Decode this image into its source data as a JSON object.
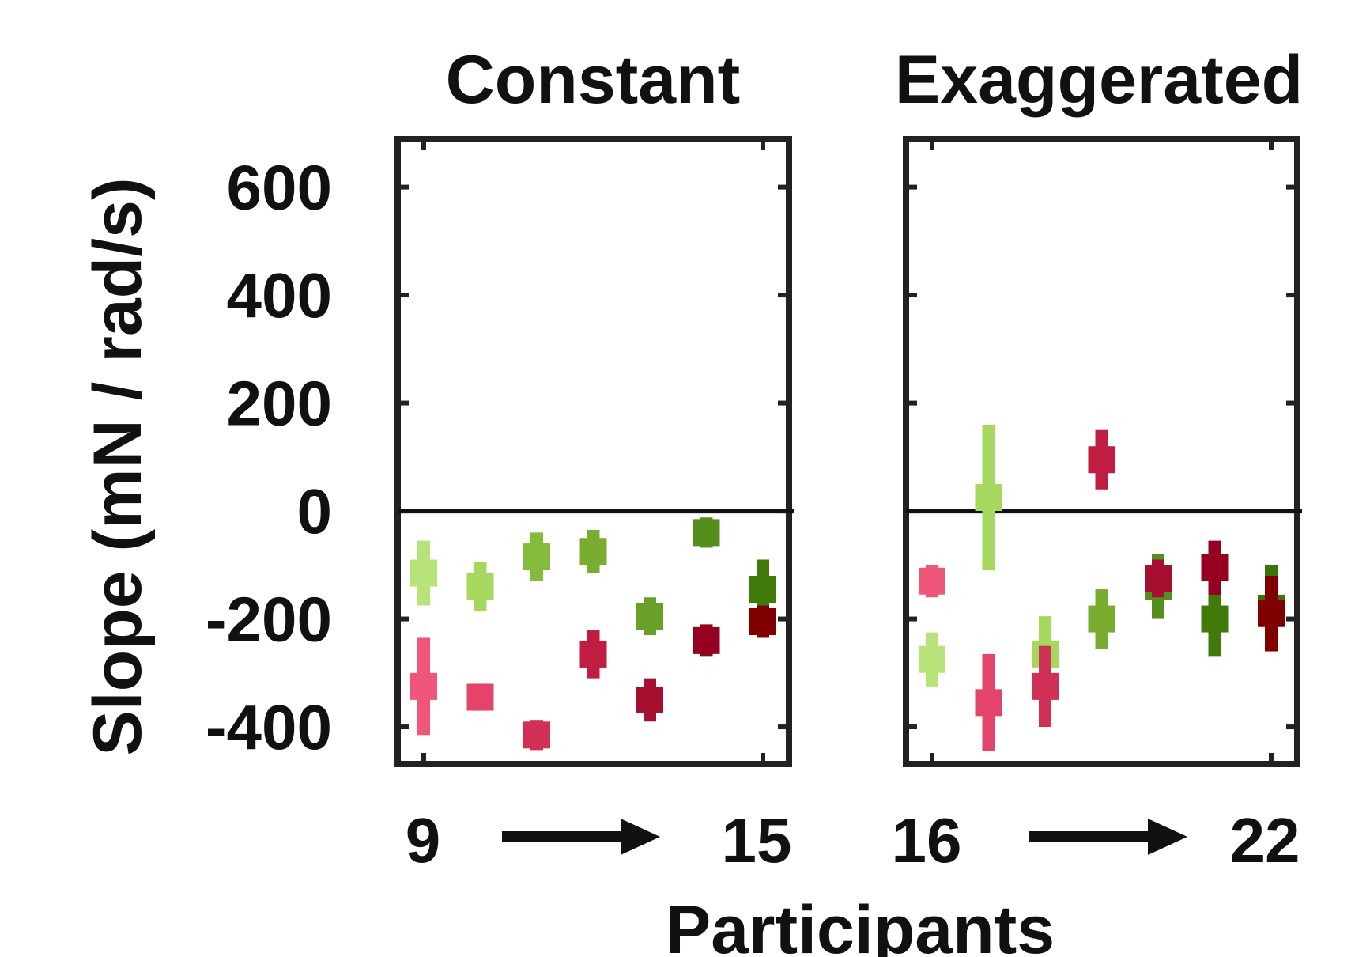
{
  "chart_data": [
    {
      "type": "scatter",
      "title": "Constant",
      "ylabel": "Slope (mN / rad/s)",
      "xlabel": "Participants",
      "ylim": [
        -460,
        680
      ],
      "yticks": [
        "600",
        "400",
        "200",
        "0",
        "-200",
        "-400"
      ],
      "x_range_labels": {
        "start": "9",
        "end": "15"
      },
      "reference_line": 0,
      "grid": false,
      "points": [
        {
          "x": 9,
          "y": -115,
          "err": 60,
          "color": "#b8e27a"
        },
        {
          "x": 9,
          "y": -325,
          "err": 90,
          "color": "#f0567a"
        },
        {
          "x": 10,
          "y": -140,
          "err": 45,
          "color": "#a6d860"
        },
        {
          "x": 10,
          "y": -345,
          "err": 25,
          "color": "#e5446a"
        },
        {
          "x": 11,
          "y": -85,
          "err": 45,
          "color": "#84bb3c"
        },
        {
          "x": 11,
          "y": -415,
          "err": 28,
          "color": "#d13055"
        },
        {
          "x": 12,
          "y": -75,
          "err": 40,
          "color": "#78ad30"
        },
        {
          "x": 12,
          "y": -265,
          "err": 45,
          "color": "#bf1e42"
        },
        {
          "x": 13,
          "y": -195,
          "err": 35,
          "color": "#6aa02a"
        },
        {
          "x": 13,
          "y": -350,
          "err": 40,
          "color": "#a51030"
        },
        {
          "x": 14,
          "y": -40,
          "err": 28,
          "color": "#558e1c"
        },
        {
          "x": 14,
          "y": -240,
          "err": 30,
          "color": "#950020"
        },
        {
          "x": 15,
          "y": -145,
          "err": 55,
          "color": "#3f7a0a"
        },
        {
          "x": 15,
          "y": -205,
          "err": 30,
          "color": "#800000"
        }
      ]
    },
    {
      "type": "scatter",
      "title": "Exaggerated",
      "ylim": [
        -460,
        680
      ],
      "x_range_labels": {
        "start": "16",
        "end": "22"
      },
      "reference_line": 0,
      "grid": false,
      "points": [
        {
          "x": 16,
          "y": -130,
          "err": 30,
          "color": "#f0567a"
        },
        {
          "x": 16,
          "y": -275,
          "err": 50,
          "color": "#b8e27a"
        },
        {
          "x": 17,
          "y": 25,
          "err": 135,
          "color": "#a6d860"
        },
        {
          "x": 17,
          "y": -355,
          "err": 90,
          "color": "#e5446a"
        },
        {
          "x": 18,
          "y": -265,
          "err": 70,
          "color": "#a6d860"
        },
        {
          "x": 18,
          "y": -325,
          "err": 75,
          "color": "#d13055"
        },
        {
          "x": 19,
          "y": -200,
          "err": 55,
          "color": "#78ad30"
        },
        {
          "x": 19,
          "y": 95,
          "err": 55,
          "color": "#bf1e42"
        },
        {
          "x": 20,
          "y": -140,
          "err": 60,
          "color": "#558e1c"
        },
        {
          "x": 20,
          "y": -125,
          "err": 35,
          "color": "#a51030"
        },
        {
          "x": 21,
          "y": -200,
          "err": 70,
          "color": "#3f7a0a"
        },
        {
          "x": 21,
          "y": -105,
          "err": 50,
          "color": "#950020"
        },
        {
          "x": 22,
          "y": -180,
          "err": 80,
          "color": "#3a7505"
        },
        {
          "x": 22,
          "y": -190,
          "err": 70,
          "color": "#800000"
        }
      ]
    }
  ]
}
